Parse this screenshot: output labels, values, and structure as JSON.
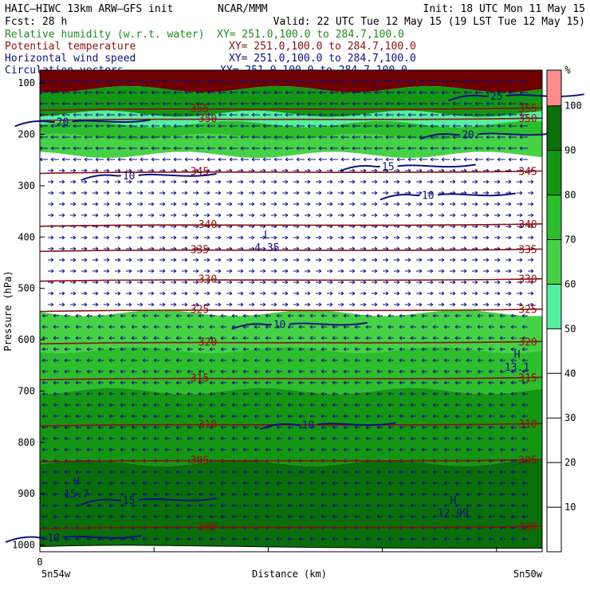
{
  "header": {
    "model": "HAIC–HIWC 13km ARW–GFS init",
    "center": "NCAR/MMM",
    "init": "Init: 18 UTC Mon 11 May 15",
    "fcst": "Fcst:    28 h",
    "valid": "Valid: 22 UTC Tue 12 May 15 (19 LST Tue 12 May 15)"
  },
  "fields": [
    {
      "name": "Relative humidity (w.r.t. water)",
      "xy": "XY= 251.0,100.0 to 284.7,100.0",
      "color": "#1e8c1e"
    },
    {
      "name": "Potential temperature",
      "xy": "XY= 251.0,100.0 to 284.7,100.0",
      "color": "#8b1010"
    },
    {
      "name": "Horizontal wind speed",
      "xy": "XY= 251.0,100.0 to 284.7,100.0",
      "color": "#101080"
    },
    {
      "name": "Circulation vectors",
      "xy": "XY= 251.0,100.0 to 284.7,100.0",
      "color": "#101080"
    }
  ],
  "colors": {
    "rh_fill": [
      "#ffffff",
      "#ffffff",
      "#ffffff",
      "#ffffff",
      "#ffffff",
      "#55f0a0",
      "#46d246",
      "#2dbe2d",
      "#149614",
      "#0a6e0a",
      "#6e0000",
      "#ff8c8c"
    ],
    "theta": "#8b1010",
    "wind": "#101080",
    "vectors": "#101080"
  },
  "chart_data": {
    "type": "heatmap",
    "title": "",
    "xlabel": "Distance (km)",
    "ylabel": "Pressure (hPa)",
    "x_start_label": "5n54w",
    "x_end_label": "5n50w",
    "x_zero_label": "0",
    "xlim": [
      0,
      440
    ],
    "ylim": [
      1000,
      75
    ],
    "yticks": [
      100,
      200,
      300,
      400,
      500,
      600,
      700,
      800,
      900,
      1000
    ],
    "colorbar": {
      "unit": "%",
      "ticks": [
        10,
        20,
        30,
        40,
        50,
        60,
        70,
        80,
        90,
        100
      ]
    },
    "rh_layers": [
      {
        "p_top": 75,
        "p_bot": 112,
        "rh": 100
      },
      {
        "p_top": 112,
        "p_bot": 160,
        "rh": 85
      },
      {
        "p_top": 160,
        "p_bot": 180,
        "rh": 55
      },
      {
        "p_top": 180,
        "p_bot": 205,
        "rh": 75
      },
      {
        "p_top": 205,
        "p_bot": 240,
        "rh": 65
      },
      {
        "p_top": 240,
        "p_bot": 548,
        "rh": 0
      },
      {
        "p_top": 548,
        "p_bot": 620,
        "rh": 65
      },
      {
        "p_top": 620,
        "p_bot": 700,
        "rh": 75
      },
      {
        "p_top": 700,
        "p_bot": 840,
        "rh": 80
      },
      {
        "p_top": 840,
        "p_bot": 1010,
        "rh": 95
      }
    ],
    "theta_isentropes": [
      {
        "theta": 355,
        "p": 150
      },
      {
        "theta": 350,
        "p": 170
      },
      {
        "theta": 345,
        "p": 273
      },
      {
        "theta": 340,
        "p": 376
      },
      {
        "theta": 335,
        "p": 425
      },
      {
        "theta": 330,
        "p": 483
      },
      {
        "theta": 325,
        "p": 542
      },
      {
        "theta": 320,
        "p": 605
      },
      {
        "theta": 315,
        "p": 675
      },
      {
        "theta": 310,
        "p": 765
      },
      {
        "theta": 305,
        "p": 835
      },
      {
        "theta": 300,
        "p": 965
      }
    ],
    "wind_contours": [
      {
        "speed": 25,
        "label_x": 400,
        "label_p": 125
      },
      {
        "speed": 20,
        "label_x": 20,
        "label_p": 175
      },
      {
        "speed": 20,
        "label_x": 375,
        "label_p": 200
      },
      {
        "speed": 15,
        "label_x": 305,
        "label_p": 262
      },
      {
        "speed": 10,
        "label_x": 78,
        "label_p": 280
      },
      {
        "speed": 10,
        "label_x": 340,
        "label_p": 318
      },
      {
        "speed": 10,
        "label_x": 210,
        "label_p": 570
      },
      {
        "speed": 10,
        "label_x": 235,
        "label_p": 765
      },
      {
        "speed": 15,
        "label_x": 78,
        "label_p": 912
      },
      {
        "speed": 10,
        "label_x": 12,
        "label_p": 985
      }
    ],
    "extrema": [
      {
        "type": "L",
        "value": "4.35",
        "x": 199,
        "p": 415
      },
      {
        "type": "H",
        "value": "13.1",
        "x": 418,
        "p": 648
      },
      {
        "type": "H",
        "value": "15.7",
        "x": 32,
        "p": 895
      },
      {
        "type": "H",
        "value": "12.99",
        "x": 362,
        "p": 932
      }
    ]
  }
}
